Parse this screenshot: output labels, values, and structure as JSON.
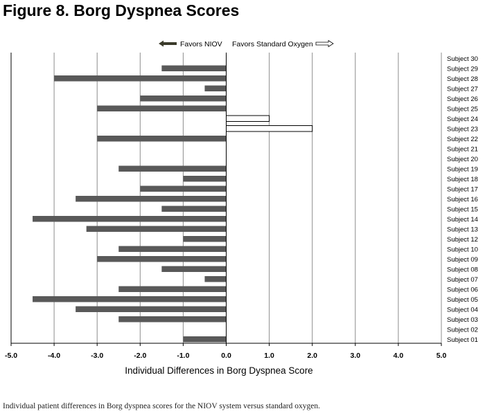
{
  "figure": {
    "title": "Figure 8. Borg Dyspnea Scores",
    "caption": "Individual patient differences in Borg dyspnea scores for the NIOV system versus standard oxygen."
  },
  "colors": {
    "niov_bar": "#595959",
    "standard_bar_fill": "#ffffff",
    "standard_bar_stroke": "#000000",
    "gridline": "#8c8c8c",
    "axis": "#000000"
  },
  "chart_data": {
    "type": "bar",
    "orientation": "horizontal",
    "title": "",
    "xlabel": "Individual Differences in Borg Dyspnea Score",
    "ylabel": "",
    "xlim": [
      -5.0,
      5.0
    ],
    "x_ticks": [
      "-5.0",
      "-4.0",
      "-3.0",
      "-2.0",
      "-1.0",
      "0.0",
      "1.0",
      "2.0",
      "3.0",
      "4.0",
      "5.0"
    ],
    "grid": "vertical",
    "legend": {
      "placement": "top-center",
      "entries": [
        {
          "label": "Favors NIOV",
          "icon": "left-arrow-icon"
        },
        {
          "label": "Favors Standard Oxygen",
          "icon": "right-arrow-icon"
        }
      ]
    },
    "categories": [
      "Subject 30",
      "Subject 29",
      "Subject 28",
      "Subject 27",
      "Subject 26",
      "Subject 25",
      "Subject 24",
      "Subject 23",
      "Subject 22",
      "Subject 21",
      "Subject 20",
      "Subject 19",
      "Subject 18",
      "Subject 17",
      "Subject 16",
      "Subject 15",
      "Subject 14",
      "Subject 13",
      "Subject 12",
      "Subject 10",
      "Subject 09",
      "Subject 08",
      "Subject 07",
      "Subject 06",
      "Subject 05",
      "Subject 04",
      "Subject 03",
      "Subject 02",
      "Subject 01"
    ],
    "values": [
      0,
      -1.5,
      -4.0,
      -0.5,
      -2.0,
      -3.0,
      1.0,
      2.0,
      -3.0,
      0,
      0,
      -2.5,
      -1.0,
      -2.0,
      -3.5,
      -1.5,
      -4.5,
      -3.25,
      -1.0,
      -2.5,
      -3.0,
      -1.5,
      -0.5,
      -2.5,
      -4.5,
      -3.5,
      -2.5,
      0,
      -1.0
    ]
  }
}
